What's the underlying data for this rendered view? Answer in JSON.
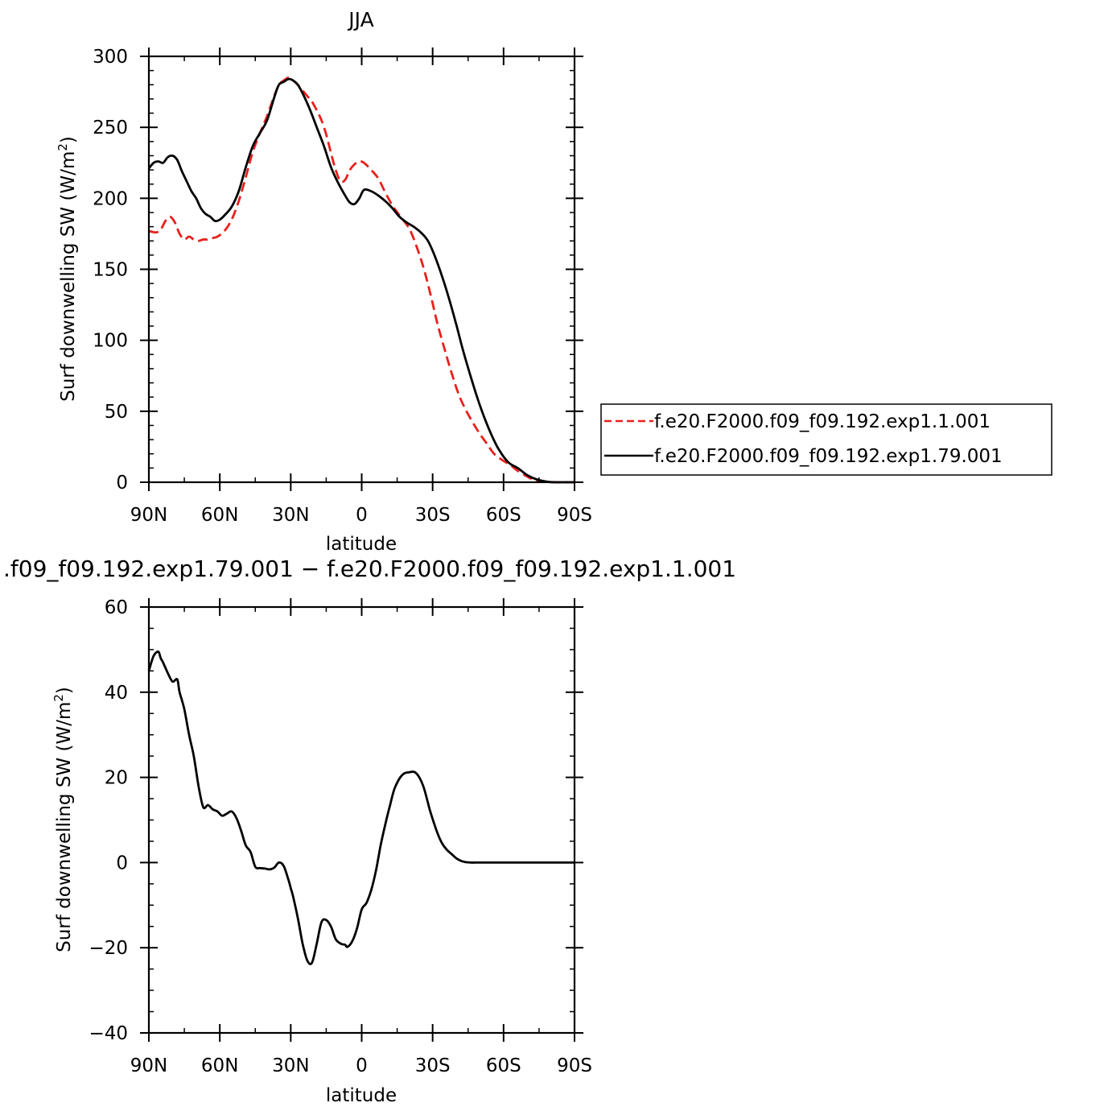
{
  "chart_data": [
    {
      "type": "line",
      "title": "JJA",
      "xlabel": "latitude",
      "ylabel": "Surf downwelling SW (W/m²)",
      "ylabel_main": "Surf downwelling SW (W/m",
      "ylabel_sup": "2",
      "ylabel_tail": ")",
      "xlim": [
        90,
        -90
      ],
      "ylim": [
        0,
        300
      ],
      "xticks": [
        90,
        60,
        30,
        0,
        -30,
        -60,
        -90
      ],
      "xtick_labels": [
        "90N",
        "60N",
        "30N",
        "0",
        "30S",
        "60S",
        "90S"
      ],
      "yticks": [
        0,
        50,
        100,
        150,
        200,
        250,
        300
      ],
      "ytick_labels": [
        "0",
        "50",
        "100",
        "150",
        "200",
        "250",
        "300"
      ],
      "legend_position": "right",
      "series": [
        {
          "name": "f.e20.F2000.f09_f09.192.exp1.1.001",
          "color": "#e8201c",
          "dash": true,
          "x": [
            90,
            87,
            85,
            83,
            81,
            79,
            77,
            75,
            73,
            71,
            69,
            67,
            65,
            63,
            61,
            58,
            55,
            52,
            49,
            46,
            43,
            40,
            37,
            35,
            33,
            31,
            29,
            27,
            25,
            23,
            21,
            19,
            17,
            15,
            13,
            11,
            9,
            7,
            5,
            3,
            1,
            -1,
            -4,
            -7,
            -10,
            -13,
            -16,
            -20,
            -23,
            -26,
            -29,
            -32,
            -35,
            -38,
            -41,
            -44,
            -47,
            -50,
            -53,
            -56,
            -60,
            -63,
            -66,
            -70,
            -73,
            -76,
            -80,
            -85,
            -90
          ],
          "y": [
            177,
            176,
            178,
            184,
            187,
            183,
            175,
            171,
            173,
            171,
            170,
            171,
            171,
            172,
            173,
            177,
            185,
            198,
            215,
            233,
            246,
            258,
            272,
            280,
            283,
            285,
            283,
            280,
            276,
            272,
            268,
            262,
            255,
            245,
            232,
            220,
            212,
            213,
            220,
            224,
            226,
            225,
            220,
            214,
            204,
            195,
            188,
            179,
            167,
            152,
            133,
            112,
            94,
            77,
            62,
            51,
            42,
            34,
            27,
            20,
            15,
            12,
            8,
            4,
            1.5,
            0.5,
            0,
            0,
            0
          ]
        },
        {
          "name": "f.e20.F2000.f09_f09.192.exp1.79.001",
          "color": "#000000",
          "dash": false,
          "x": [
            90,
            88,
            86,
            84,
            82,
            80,
            78,
            76,
            74,
            72,
            70,
            68,
            66,
            64,
            62,
            60,
            58,
            55,
            52,
            49,
            46,
            43,
            40,
            37,
            35,
            33,
            31,
            29,
            27,
            25,
            22,
            19,
            16,
            13,
            10,
            7,
            5,
            3,
            1,
            -1,
            -4,
            -7,
            -10,
            -13,
            -16,
            -19,
            -22,
            -25,
            -28,
            -31,
            -34,
            -37,
            -40,
            -43,
            -46,
            -49,
            -52,
            -55,
            -58,
            -62,
            -66,
            -70,
            -74,
            -78,
            -82,
            -86,
            -90
          ],
          "y": [
            221,
            225,
            226,
            225,
            229,
            230,
            227,
            219,
            212,
            205,
            200,
            193,
            189,
            187,
            184,
            185,
            188,
            194,
            205,
            222,
            237,
            246,
            255,
            271,
            280,
            282,
            284,
            283,
            280,
            274,
            263,
            250,
            237,
            222,
            211,
            202,
            197,
            196,
            200,
            206,
            205,
            202,
            198,
            193,
            187,
            183,
            180,
            176,
            170,
            159,
            145,
            129,
            111,
            92,
            75,
            59,
            45,
            33,
            23,
            14,
            10,
            5,
            2,
            0.5,
            0,
            0,
            0
          ]
        }
      ]
    },
    {
      "type": "line",
      "title": ".f09_f09.192.exp1.79.001 − f.e20.F2000.f09_f09.192.exp1.1.001",
      "xlabel": "latitude",
      "ylabel": "Surf downwelling SW (W/m²)",
      "ylabel_main": "Surf downwelling SW (W/m",
      "ylabel_sup": "2",
      "ylabel_tail": ")",
      "xlim": [
        90,
        -90
      ],
      "ylim": [
        -40,
        60
      ],
      "xticks": [
        90,
        60,
        30,
        0,
        -30,
        -60,
        -90
      ],
      "xtick_labels": [
        "90N",
        "60N",
        "30N",
        "0",
        "30S",
        "60S",
        "90S"
      ],
      "yticks": [
        -40,
        -20,
        0,
        20,
        40,
        60
      ],
      "ytick_labels": [
        "−40",
        "−20",
        "0",
        "20",
        "40",
        "60"
      ],
      "series": [
        {
          "color": "#000000",
          "x": [
            90,
            88,
            86,
            85,
            84,
            82,
            80,
            78,
            77,
            75,
            73,
            71,
            69,
            67,
            65,
            63,
            61,
            59,
            57,
            55,
            53,
            51,
            49,
            47,
            45,
            43,
            41,
            39,
            37,
            35,
            33,
            31,
            30,
            29,
            27,
            25,
            23,
            21,
            19,
            17,
            15,
            13,
            11,
            9,
            8,
            7,
            6,
            4,
            2,
            0,
            -2,
            -4,
            -6,
            -8,
            -10,
            -12,
            -14,
            -17,
            -20,
            -23,
            -26,
            -29,
            -32,
            -34,
            -36,
            -38,
            -40,
            -42,
            -44,
            -46,
            -48,
            -50,
            -53,
            -56,
            -60,
            -64,
            -67,
            -70,
            -75,
            -80,
            -85,
            -90
          ],
          "y": [
            45,
            48.5,
            49.5,
            48,
            47,
            44.5,
            42.5,
            43,
            40,
            36,
            30,
            25,
            18,
            13,
            13.5,
            12.5,
            12,
            11,
            11.5,
            12,
            10.5,
            7.5,
            4,
            2.5,
            -1,
            -1.3,
            -1.4,
            -1.6,
            -1.2,
            0,
            -0.8,
            -4,
            -6,
            -8,
            -13,
            -19,
            -23,
            -23.5,
            -19,
            -14,
            -13.5,
            -15,
            -18,
            -19,
            -19.2,
            -19.3,
            -19.8,
            -18.5,
            -15.5,
            -11,
            -9.5,
            -6.5,
            -2,
            4,
            9,
            13.5,
            17.5,
            20.5,
            21.2,
            21,
            18,
            12,
            7,
            4.5,
            3,
            2,
            1,
            0.4,
            0.1,
            0,
            0,
            0,
            0,
            0,
            0,
            0,
            0,
            0,
            0,
            0,
            0,
            0
          ]
        }
      ]
    }
  ]
}
